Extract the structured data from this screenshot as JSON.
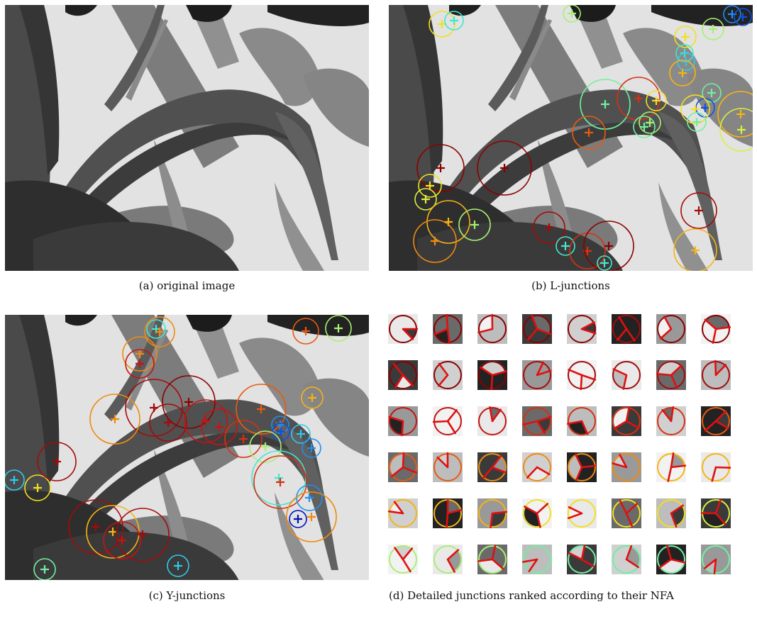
{
  "figure": {
    "captions": {
      "a": "(a) original image",
      "b": "(b) L-junctions",
      "c": "(c) Y-junctions",
      "d": "(d) Detailed junctions ranked according to their NFA"
    }
  },
  "palette": [
    "#8b0000",
    "#a50a0a",
    "#c41414",
    "#d83010",
    "#e85a10",
    "#f08a10",
    "#f6b414",
    "#f2e020",
    "#d8f040",
    "#a8f070",
    "#70f0a0",
    "#40e8d0",
    "#30c8f0",
    "#2090f0",
    "#1050e0",
    "#0010c0"
  ]
}
